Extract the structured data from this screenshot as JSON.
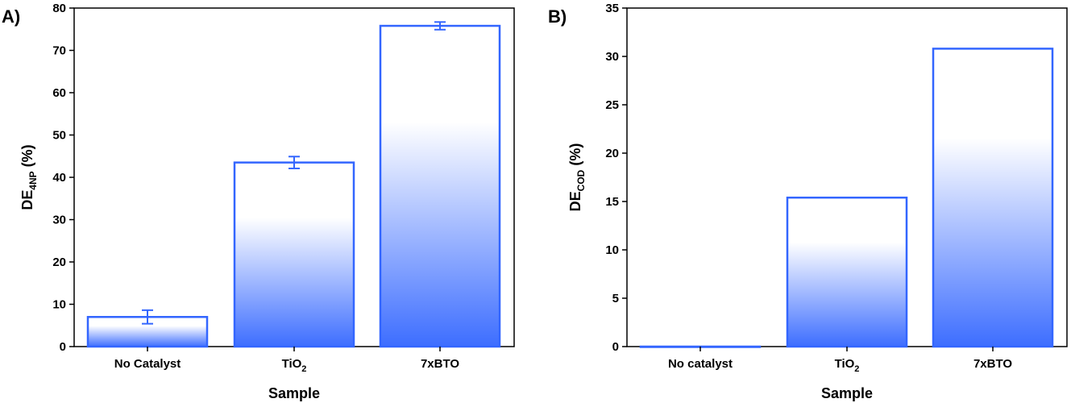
{
  "bar_color": "#3366ff",
  "chart_data": [
    {
      "type": "bar",
      "panel": "A)",
      "categories": [
        "No Catalyst",
        "TiO",
        "7xBTO"
      ],
      "category_subscripts": [
        "",
        "2",
        ""
      ],
      "values": [
        7.0,
        43.5,
        75.8
      ],
      "errors": [
        1.6,
        1.4,
        0.9
      ],
      "ylim": [
        0,
        80
      ],
      "yticks": [
        0,
        10,
        20,
        30,
        40,
        50,
        60,
        70,
        80
      ],
      "xlabel": "Sample",
      "ylabel_main": "DE",
      "ylabel_sub": "4NP",
      "ylabel_unit": " (%)"
    },
    {
      "type": "bar",
      "panel": "B)",
      "categories": [
        "No catalyst",
        "TiO",
        "7xBTO"
      ],
      "category_subscripts": [
        "",
        "2",
        ""
      ],
      "values": [
        0,
        15.4,
        30.8
      ],
      "errors": [],
      "ylim": [
        0,
        35
      ],
      "yticks": [
        0,
        5,
        10,
        15,
        20,
        25,
        30,
        35
      ],
      "xlabel": "Sample",
      "ylabel_main": "DE",
      "ylabel_sub": "COD",
      "ylabel_unit": " (%)"
    }
  ]
}
